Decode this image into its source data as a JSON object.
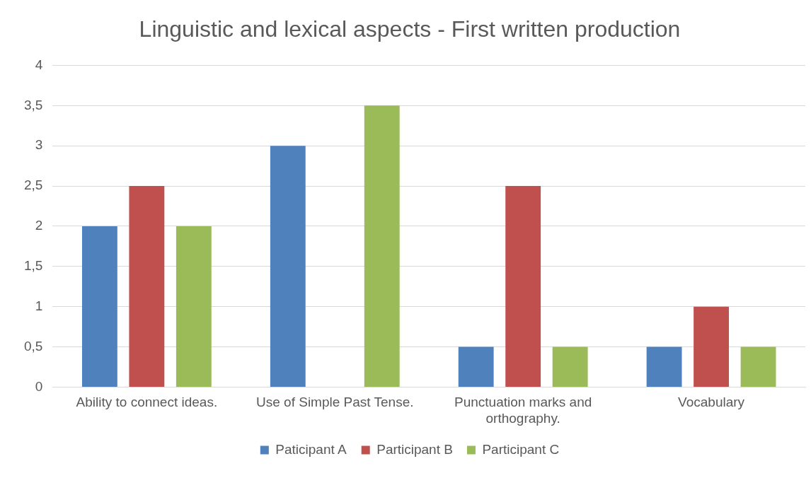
{
  "chart_data": {
    "type": "bar",
    "title": "Linguistic and lexical aspects - First written production",
    "categories": [
      "Ability to connect ideas.",
      "Use of Simple Past Tense.",
      "Punctuation marks and orthography.",
      "Vocabulary"
    ],
    "series": [
      {
        "name": "Paticipant A",
        "color": "#4f81bd",
        "values": [
          2,
          3,
          0.5,
          0.5
        ]
      },
      {
        "name": "Participant B",
        "color": "#c0504d",
        "values": [
          2.5,
          0,
          2.5,
          1
        ]
      },
      {
        "name": "Participant C",
        "color": "#9bbb59",
        "values": [
          2,
          3.5,
          0.5,
          0.5
        ]
      }
    ],
    "ylim": [
      0,
      4
    ],
    "yticks": [
      0,
      {
        "value": 0.5,
        "label": "0,5"
      },
      1,
      {
        "value": 1.5,
        "label": "1,5"
      },
      2,
      {
        "value": 2.5,
        "label": "2,5"
      },
      3,
      {
        "value": 3.5,
        "label": "3,5"
      },
      4
    ],
    "grid": "y",
    "legend": "bottom"
  }
}
